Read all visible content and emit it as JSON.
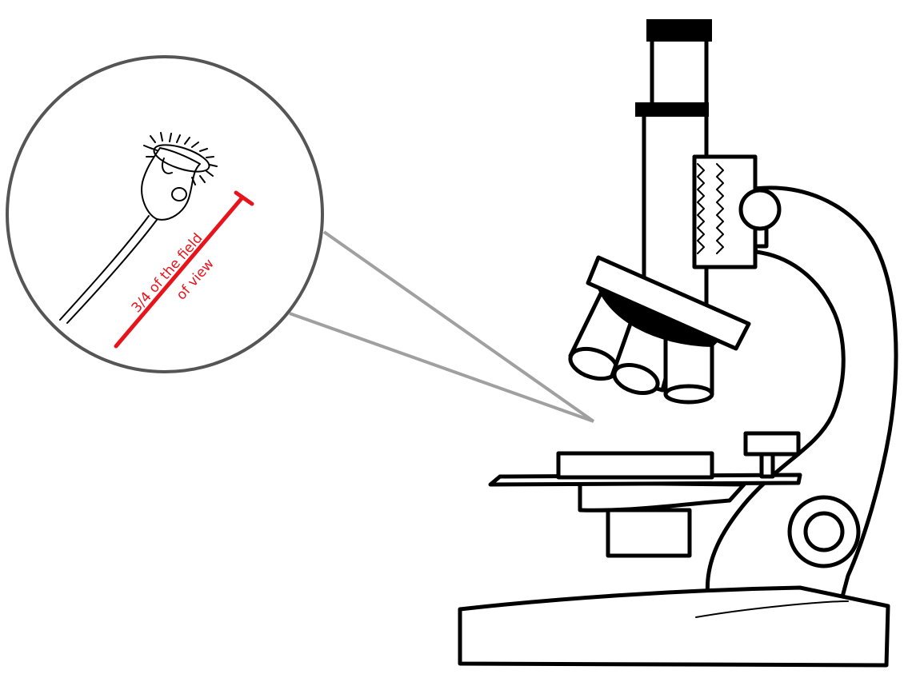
{
  "annotation": {
    "line1": "3/4 of the field",
    "line2": "of view"
  },
  "colors": {
    "annotation": "#e8141c",
    "outline": "#000000",
    "callout": "#a0a0a0",
    "lens_border": "#555555"
  }
}
